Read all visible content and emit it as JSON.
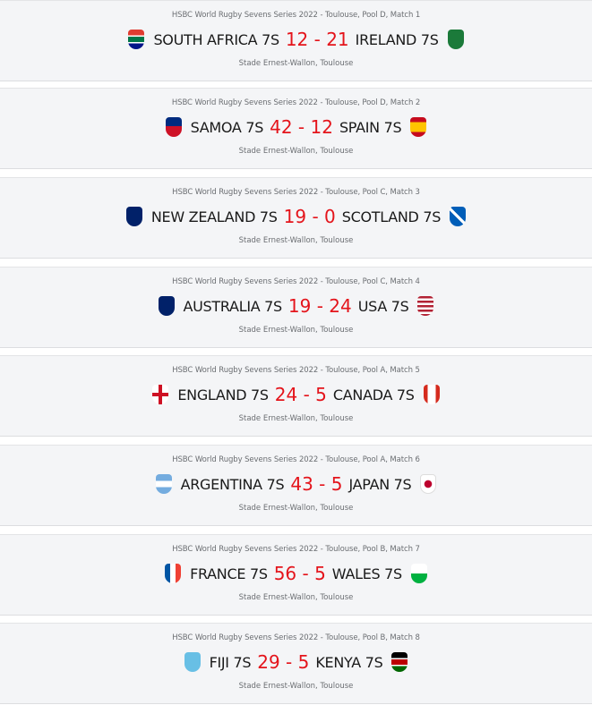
{
  "matches": [
    {
      "competition": "HSBC World Rugby Sevens Series 2022 - Toulouse, Pool D, Match 1",
      "home": "SOUTH AFRICA 7S",
      "score": "12 - 21",
      "away": "IRELAND 7S",
      "venue": "Stade Ernest-Wallon, Toulouse",
      "home_flag": "south-africa-flag-icon",
      "away_flag": "ireland-flag-icon"
    },
    {
      "competition": "HSBC World Rugby Sevens Series 2022 - Toulouse, Pool D, Match 2",
      "home": "SAMOA 7S",
      "score": "42 - 12",
      "away": "SPAIN 7S",
      "venue": "Stade Ernest-Wallon, Toulouse",
      "home_flag": "samoa-flag-icon",
      "away_flag": "spain-flag-icon"
    },
    {
      "competition": "HSBC World Rugby Sevens Series 2022 - Toulouse, Pool C, Match 3",
      "home": "NEW ZEALAND 7S",
      "score": "19 - 0",
      "away": "SCOTLAND 7S",
      "venue": "Stade Ernest-Wallon, Toulouse",
      "home_flag": "new-zealand-flag-icon",
      "away_flag": "scotland-flag-icon"
    },
    {
      "competition": "HSBC World Rugby Sevens Series 2022 - Toulouse, Pool C, Match 4",
      "home": "AUSTRALIA 7S",
      "score": "19 - 24",
      "away": "USA 7S",
      "venue": "Stade Ernest-Wallon, Toulouse",
      "home_flag": "australia-flag-icon",
      "away_flag": "usa-flag-icon"
    },
    {
      "competition": "HSBC World Rugby Sevens Series 2022 - Toulouse, Pool A, Match 5",
      "home": "ENGLAND 7S",
      "score": "24 - 5",
      "away": "CANADA 7S",
      "venue": "Stade Ernest-Wallon, Toulouse",
      "home_flag": "england-flag-icon",
      "away_flag": "canada-flag-icon"
    },
    {
      "competition": "HSBC World Rugby Sevens Series 2022 - Toulouse, Pool A, Match 6",
      "home": "ARGENTINA 7S",
      "score": "43 - 5",
      "away": "JAPAN 7S",
      "venue": "Stade Ernest-Wallon, Toulouse",
      "home_flag": "argentina-flag-icon",
      "away_flag": "japan-flag-icon"
    },
    {
      "competition": "HSBC World Rugby Sevens Series 2022 - Toulouse, Pool B, Match 7",
      "home": "FRANCE 7S",
      "score": "56 - 5",
      "away": "WALES 7S",
      "venue": "Stade Ernest-Wallon, Toulouse",
      "home_flag": "france-flag-icon",
      "away_flag": "wales-flag-icon"
    },
    {
      "competition": "HSBC World Rugby Sevens Series 2022 - Toulouse, Pool B, Match 8",
      "home": "FIJI 7S",
      "score": "29 - 5",
      "away": "KENYA 7S",
      "venue": "Stade Ernest-Wallon, Toulouse",
      "home_flag": "fiji-flag-icon",
      "away_flag": "kenya-flag-icon"
    }
  ],
  "colors": {
    "score": "#e4141b",
    "card_bg": "#f4f5f7"
  }
}
